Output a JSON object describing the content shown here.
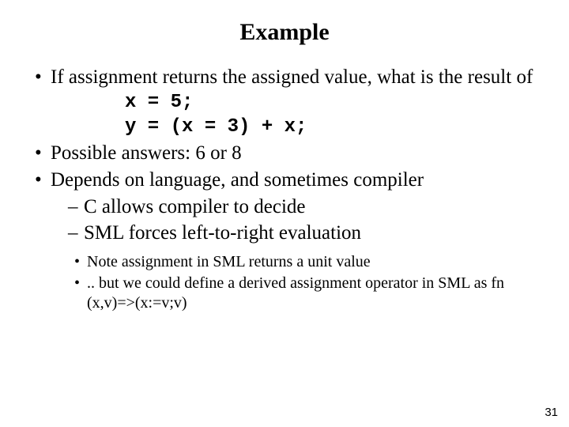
{
  "title": "Example",
  "bullets": {
    "b1": "If assignment returns the assigned value, what is the result of",
    "code1": "x = 5;",
    "code2": "y = (x = 3) + x;",
    "b2": "Possible answers: 6 or 8",
    "b3": " Depends on language, and sometimes compiler",
    "b3_sub1": "C allows compiler to decide",
    "b3_sub2": "SML forces left-to-right evaluation",
    "b3_note1": "Note assignment in SML returns a unit value",
    "b3_note2": ".. but we could define a derived assignment operator in SML as fn (x,v)=>(x:=v;v)"
  },
  "page_number": "31"
}
